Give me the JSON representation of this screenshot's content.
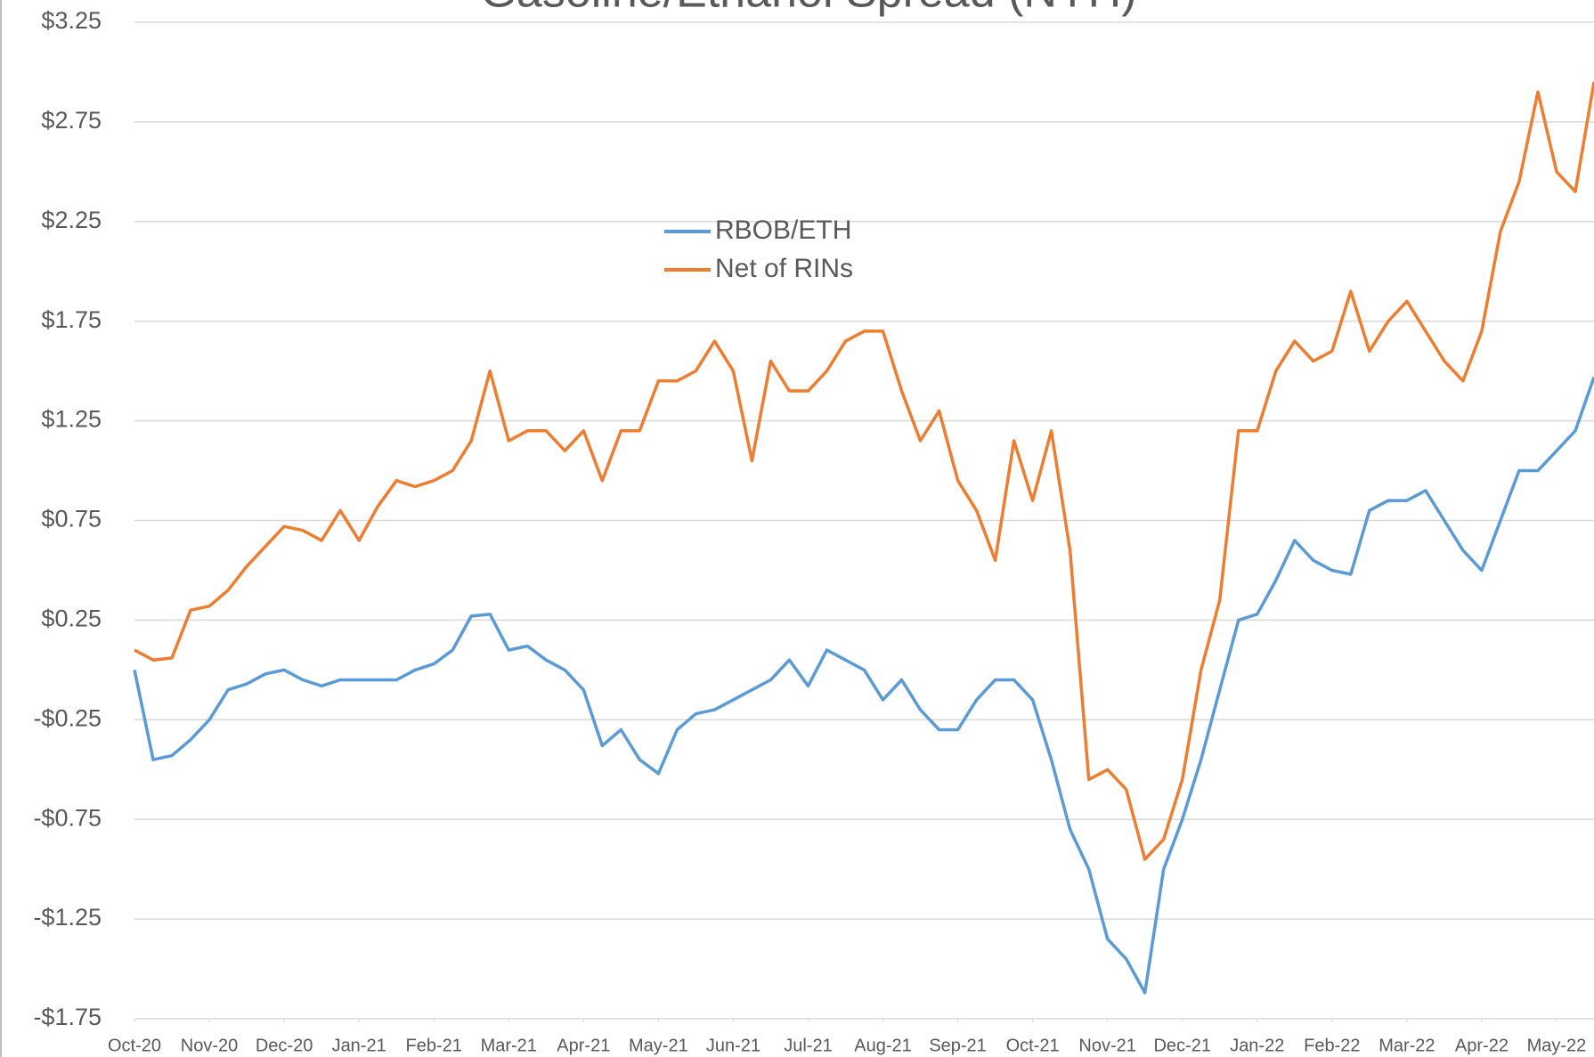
{
  "chart_data": {
    "type": "line",
    "title": "Gasoline/Ethanol Spread (NYH)",
    "x": [
      0,
      0.25,
      0.5,
      0.75,
      1,
      1.25,
      1.5,
      1.75,
      2,
      2.25,
      2.5,
      2.75,
      3,
      3.25,
      3.5,
      3.75,
      4,
      4.25,
      4.5,
      4.75,
      5,
      5.25,
      5.5,
      5.75,
      6,
      6.25,
      6.5,
      6.75,
      7,
      7.25,
      7.5,
      7.75,
      8,
      8.25,
      8.5,
      8.75,
      9,
      9.25,
      9.5,
      9.75,
      10,
      10.25,
      10.5,
      10.75,
      11,
      11.25,
      11.5,
      11.75,
      12,
      12.25,
      12.5,
      12.75,
      13,
      13.25,
      13.5,
      13.75,
      14,
      14.25,
      14.5,
      14.75,
      15,
      15.25,
      15.5,
      15.75,
      16,
      16.25,
      16.5,
      16.75,
      17,
      17.25,
      17.5,
      17.75,
      18,
      18.25,
      18.5,
      18.75,
      19,
      19.25,
      19.5
    ],
    "series": [
      {
        "name": "RBOB/ETH",
        "color": "#5b9bd5",
        "values": [
          0.0,
          -0.45,
          -0.43,
          -0.35,
          -0.25,
          -0.1,
          -0.07,
          -0.02,
          0.0,
          -0.05,
          -0.08,
          -0.05,
          -0.05,
          -0.05,
          -0.05,
          0.0,
          0.03,
          0.1,
          0.27,
          0.28,
          0.1,
          0.12,
          0.05,
          0.0,
          -0.1,
          -0.38,
          -0.3,
          -0.45,
          -0.52,
          -0.3,
          -0.22,
          -0.2,
          -0.15,
          -0.1,
          -0.05,
          0.05,
          -0.08,
          0.1,
          0.05,
          0.0,
          -0.15,
          -0.05,
          -0.2,
          -0.3,
          -0.3,
          -0.15,
          -0.05,
          -0.05,
          -0.15,
          -0.45,
          -0.8,
          -1.0,
          -1.35,
          -1.45,
          -1.62,
          -1.0,
          -0.75,
          -0.45,
          -0.1,
          0.25,
          0.28,
          0.45,
          0.65,
          0.55,
          0.5,
          0.48,
          0.8,
          0.85,
          0.85,
          0.9,
          0.75,
          0.6,
          0.5,
          0.75,
          1.0,
          1.0,
          1.1,
          1.2,
          1.47
        ]
      },
      {
        "name": "Net of RINs",
        "color": "#ed7d31",
        "values": [
          0.1,
          0.05,
          0.06,
          0.3,
          0.32,
          0.4,
          0.52,
          0.62,
          0.72,
          0.7,
          0.65,
          0.8,
          0.65,
          0.82,
          0.95,
          0.92,
          0.95,
          1.0,
          1.15,
          1.5,
          1.15,
          1.2,
          1.2,
          1.1,
          1.2,
          0.95,
          1.2,
          1.2,
          1.45,
          1.45,
          1.5,
          1.65,
          1.5,
          1.05,
          1.55,
          1.4,
          1.4,
          1.5,
          1.65,
          1.7,
          1.7,
          1.4,
          1.15,
          1.3,
          0.95,
          0.8,
          0.55,
          1.15,
          0.85,
          1.2,
          0.6,
          -0.55,
          -0.5,
          -0.6,
          -0.95,
          -0.85,
          -0.55,
          0.0,
          0.35,
          1.2,
          1.2,
          1.5,
          1.65,
          1.55,
          1.6,
          1.9,
          1.6,
          1.75,
          1.85,
          1.7,
          1.55,
          1.45,
          1.7,
          2.2,
          2.45,
          2.9,
          2.5,
          2.4,
          2.95
        ]
      }
    ],
    "xlim": [
      0,
      19.5
    ],
    "xticks": [
      {
        "value": 0,
        "label": "Oct-20"
      },
      {
        "value": 1,
        "label": "Nov-20"
      },
      {
        "value": 2,
        "label": "Dec-20"
      },
      {
        "value": 3,
        "label": "Jan-21"
      },
      {
        "value": 4,
        "label": "Feb-21"
      },
      {
        "value": 5,
        "label": "Mar-21"
      },
      {
        "value": 6,
        "label": "Apr-21"
      },
      {
        "value": 7,
        "label": "May-21"
      },
      {
        "value": 8,
        "label": "Jun-21"
      },
      {
        "value": 9,
        "label": "Jul-21"
      },
      {
        "value": 10,
        "label": "Aug-21"
      },
      {
        "value": 11,
        "label": "Sep-21"
      },
      {
        "value": 12,
        "label": "Oct-21"
      },
      {
        "value": 13,
        "label": "Nov-21"
      },
      {
        "value": 14,
        "label": "Dec-21"
      },
      {
        "value": 15,
        "label": "Jan-22"
      },
      {
        "value": 16,
        "label": "Feb-22"
      },
      {
        "value": 17,
        "label": "Mar-22"
      },
      {
        "value": 18,
        "label": "Apr-22"
      },
      {
        "value": 19,
        "label": "May-22"
      }
    ],
    "ylim": [
      -1.75,
      3.25
    ],
    "yticks": [
      {
        "value": -1.75,
        "label": "-$1.75"
      },
      {
        "value": -1.25,
        "label": "-$1.25"
      },
      {
        "value": -0.75,
        "label": "-$0.75"
      },
      {
        "value": -0.25,
        "label": "-$0.25"
      },
      {
        "value": 0.25,
        "label": "$0.25"
      },
      {
        "value": 0.75,
        "label": "$0.75"
      },
      {
        "value": 1.25,
        "label": "$1.25"
      },
      {
        "value": 1.75,
        "label": "$1.75"
      },
      {
        "value": 2.25,
        "label": "$2.25"
      },
      {
        "value": 2.75,
        "label": "$2.75"
      },
      {
        "value": 3.25,
        "label": "$3.25"
      }
    ],
    "grid": true
  }
}
